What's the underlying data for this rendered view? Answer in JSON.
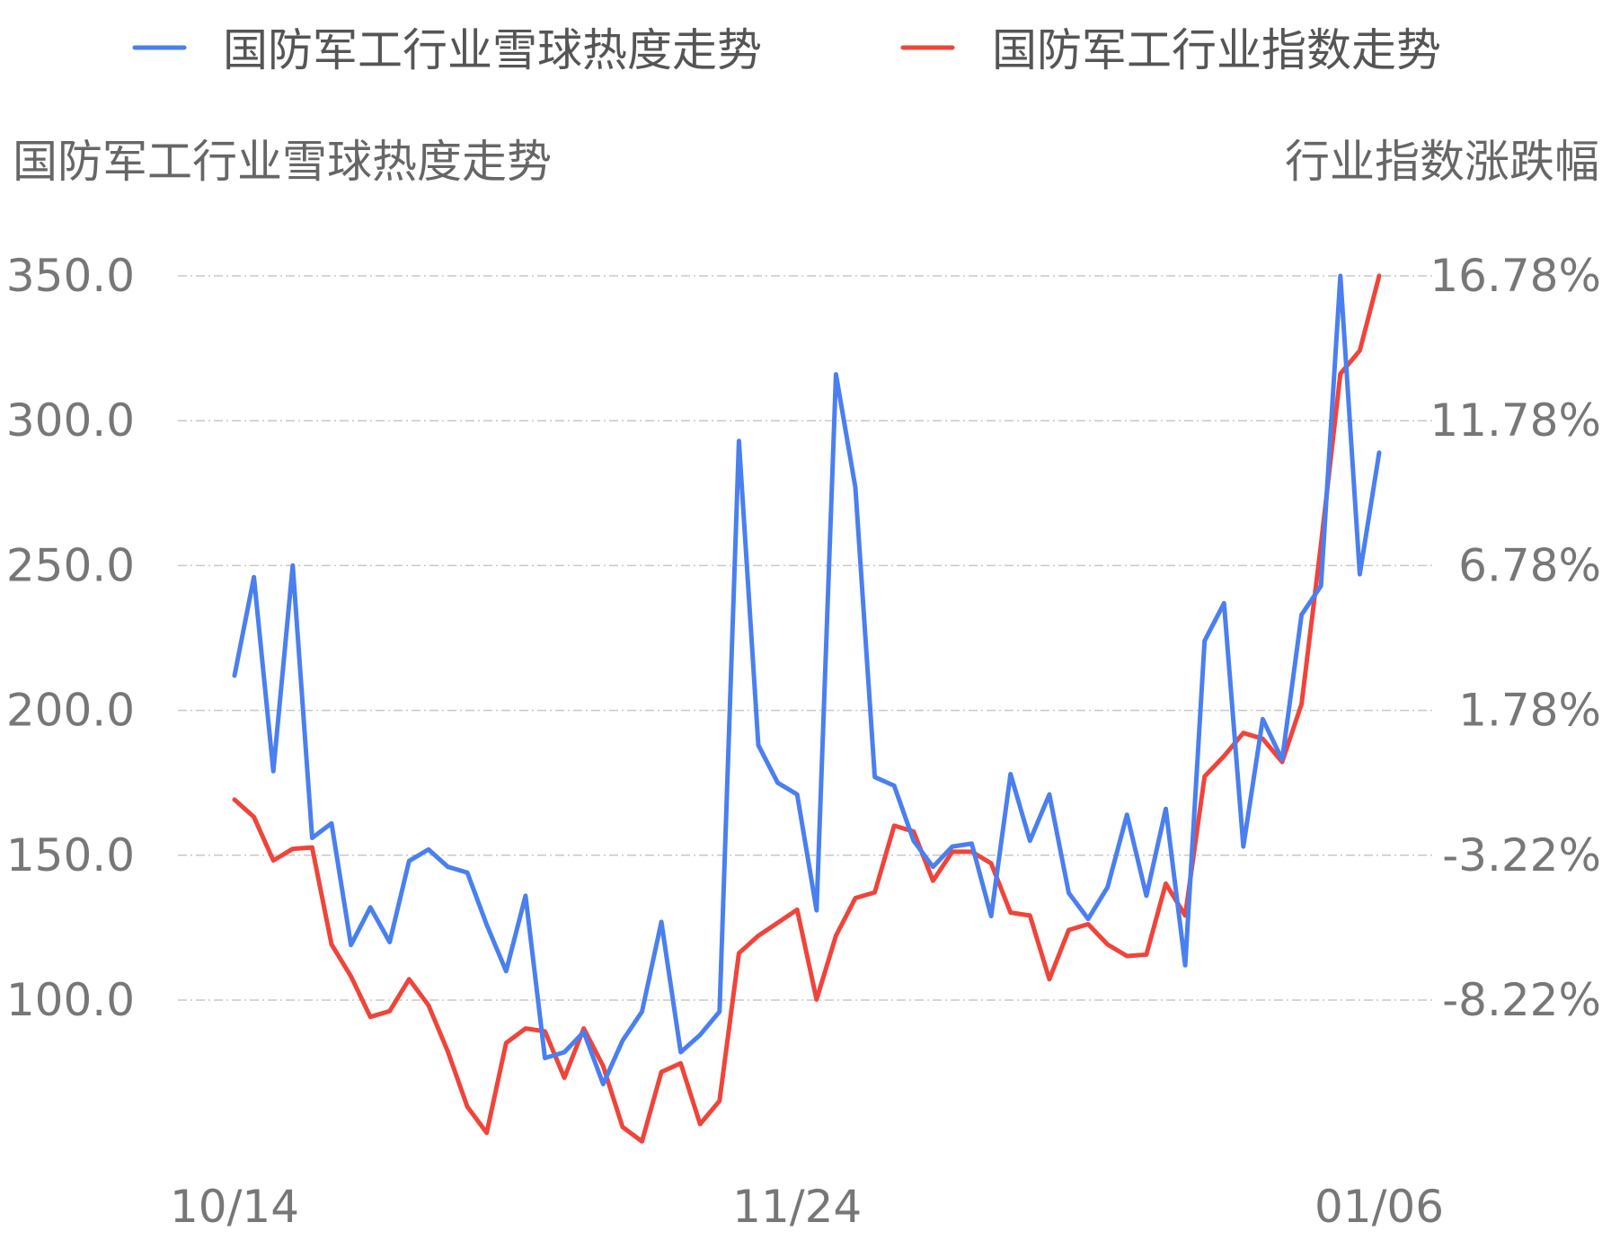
{
  "legend": [
    {
      "label": "国防军工行业雪球热度走势",
      "color": "#4a7ff0"
    },
    {
      "label": "国防军工行业指数走势",
      "color": "#f0443a"
    }
  ],
  "chart_data": {
    "type": "line",
    "left_axis_title": "国防军工行业雪球热度走势",
    "right_axis_title": "行业指数涨跌幅",
    "left_ticks": [
      "350.0",
      "300.0",
      "250.0",
      "200.0",
      "150.0",
      "100.0"
    ],
    "right_ticks": [
      "16.78%",
      "11.78%",
      "6.78%",
      "1.78%",
      "-3.22%",
      "-8.22%"
    ],
    "x_ticks": [
      "10/14",
      "11/24",
      "01/06"
    ],
    "left_ylim": [
      100,
      350
    ],
    "right_ylim": [
      -8.22,
      16.78
    ],
    "grid": true,
    "legend_position": "top",
    "series": [
      {
        "name": "国防军工行业雪球热度走势",
        "axis": "left",
        "color": "#4a7ff0",
        "values": [
          212,
          246,
          179,
          250,
          156,
          161,
          119,
          132,
          120,
          148,
          152,
          146,
          144,
          126,
          110,
          136,
          80,
          82,
          89,
          71,
          86,
          96,
          127,
          82,
          88,
          96,
          293,
          188,
          175,
          171,
          131,
          316,
          277,
          177,
          174,
          155,
          146,
          153,
          154,
          129,
          178,
          155,
          171,
          137,
          128,
          139,
          164,
          136,
          166,
          112,
          224,
          237,
          153,
          197,
          183,
          233,
          243,
          350,
          247,
          289
        ]
      },
      {
        "name": "国防军工行业指数走势",
        "axis": "right",
        "color": "#f0443a",
        "values": [
          -1.3,
          -1.9,
          -3.4,
          -3.0,
          -2.95,
          -6.3,
          -7.4,
          -8.8,
          -8.6,
          -7.5,
          -8.4,
          -10.0,
          -11.9,
          -12.8,
          -9.7,
          -9.2,
          -9.3,
          -10.9,
          -9.2,
          -10.5,
          -12.6,
          -13.1,
          -10.7,
          -10.4,
          -12.5,
          -11.7,
          -6.6,
          -6.0,
          -5.55,
          -5.1,
          -8.2,
          -6.0,
          -4.7,
          -4.5,
          -2.2,
          -2.4,
          -4.1,
          -3.1,
          -3.1,
          -3.5,
          -5.2,
          -5.3,
          -7.5,
          -5.8,
          -5.6,
          -6.3,
          -6.7,
          -6.65,
          -4.2,
          -5.3,
          -0.5,
          0.2,
          1.0,
          0.8,
          0.0,
          2.0,
          7.5,
          13.4,
          14.2,
          16.78
        ]
      }
    ]
  }
}
